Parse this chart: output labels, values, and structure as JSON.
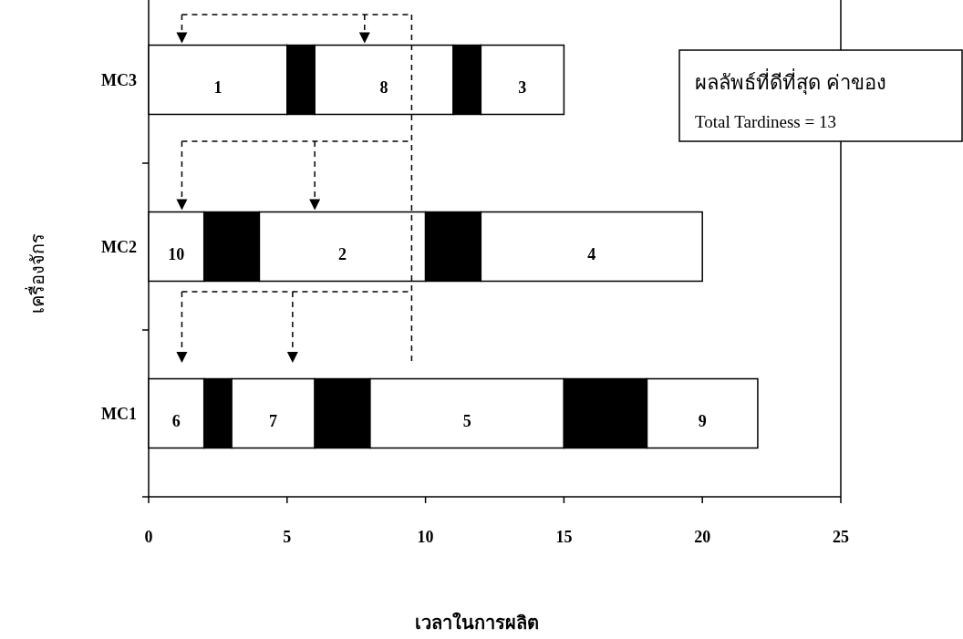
{
  "chart_data": {
    "type": "bar",
    "orientation": "horizontal",
    "stacked": true,
    "categories": [
      "MC3",
      "MC2",
      "MC1"
    ],
    "xlabel": "เวลาในการผลิต",
    "ylabel": "เครื่องจักร",
    "xlim": [
      0,
      25
    ],
    "xticks": [
      0,
      5,
      10,
      15,
      20,
      25
    ],
    "grid": false,
    "ref_lines": [
      {
        "axis": "x",
        "value": 9.5,
        "color": "#000000",
        "line_style": "dashed"
      }
    ],
    "annotations": [
      "ผลลัพธ์ที่ดีที่สุด ค่าของ",
      "Total Tardiness = 13",
      "1",
      "8",
      "3",
      "10",
      "2",
      "4",
      "6",
      "7",
      "5",
      "9"
    ],
    "series": [
      {
        "color": "#ffffff",
        "values": [
          5,
          2,
          2
        ]
      },
      {
        "color": "#000000",
        "values": [
          1,
          2,
          1
        ]
      },
      {
        "color": "#ffffff",
        "values": [
          5,
          6,
          3
        ]
      },
      {
        "color": "#000000",
        "values": [
          1,
          2,
          2
        ]
      },
      {
        "color": "#ffffff",
        "values": [
          3,
          8,
          7
        ]
      },
      {
        "color": "#000000",
        "values": [
          null,
          null,
          3
        ]
      },
      {
        "color": "#ffffff",
        "values": [
          null,
          null,
          4
        ]
      }
    ]
  }
}
